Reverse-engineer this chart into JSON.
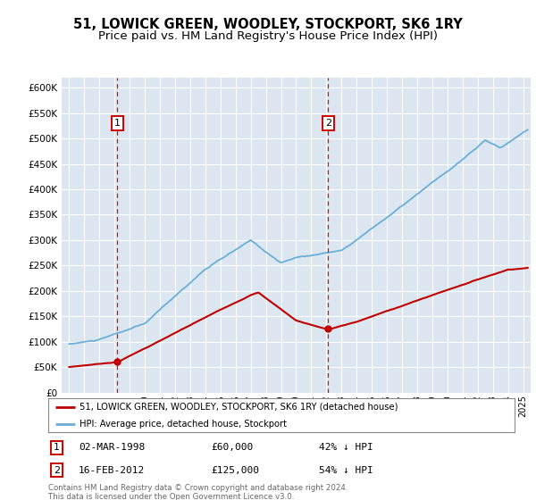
{
  "title": "51, LOWICK GREEN, WOODLEY, STOCKPORT, SK6 1RY",
  "subtitle": "Price paid vs. HM Land Registry's House Price Index (HPI)",
  "title_fontsize": 10.5,
  "subtitle_fontsize": 9.5,
  "background_color": "#ffffff",
  "plot_bg_color": "#dce6f0",
  "grid_color": "#ffffff",
  "hpi_line_color": "#6baed6",
  "price_line_color": "#c00000",
  "annotation_box_color": "#cc0000",
  "ylim": [
    0,
    620000
  ],
  "yticks": [
    0,
    50000,
    100000,
    150000,
    200000,
    250000,
    300000,
    350000,
    400000,
    450000,
    500000,
    550000,
    600000
  ],
  "ytick_labels": [
    "£0",
    "£50K",
    "£100K",
    "£150K",
    "£200K",
    "£250K",
    "£300K",
    "£350K",
    "£400K",
    "£450K",
    "£500K",
    "£550K",
    "£600K"
  ],
  "sale1": {
    "date_num": 1998.17,
    "price": 60000,
    "label": "1",
    "date_str": "02-MAR-1998",
    "price_str": "£60,000",
    "hpi_str": "42% ↓ HPI"
  },
  "sale2": {
    "date_num": 2012.12,
    "price": 125000,
    "label": "2",
    "date_str": "16-FEB-2012",
    "price_str": "£125,000",
    "hpi_str": "54% ↓ HPI"
  },
  "legend_label1": "51, LOWICK GREEN, WOODLEY, STOCKPORT, SK6 1RY (detached house)",
  "legend_label2": "HPI: Average price, detached house, Stockport",
  "footnote": "Contains HM Land Registry data © Crown copyright and database right 2024.\nThis data is licensed under the Open Government Licence v3.0.",
  "xlim": [
    1994.5,
    2025.5
  ],
  "xticks": [
    1995,
    1996,
    1997,
    1998,
    1999,
    2000,
    2001,
    2002,
    2003,
    2004,
    2005,
    2006,
    2007,
    2008,
    2009,
    2010,
    2011,
    2012,
    2013,
    2014,
    2015,
    2016,
    2017,
    2018,
    2019,
    2020,
    2021,
    2022,
    2023,
    2024,
    2025
  ]
}
